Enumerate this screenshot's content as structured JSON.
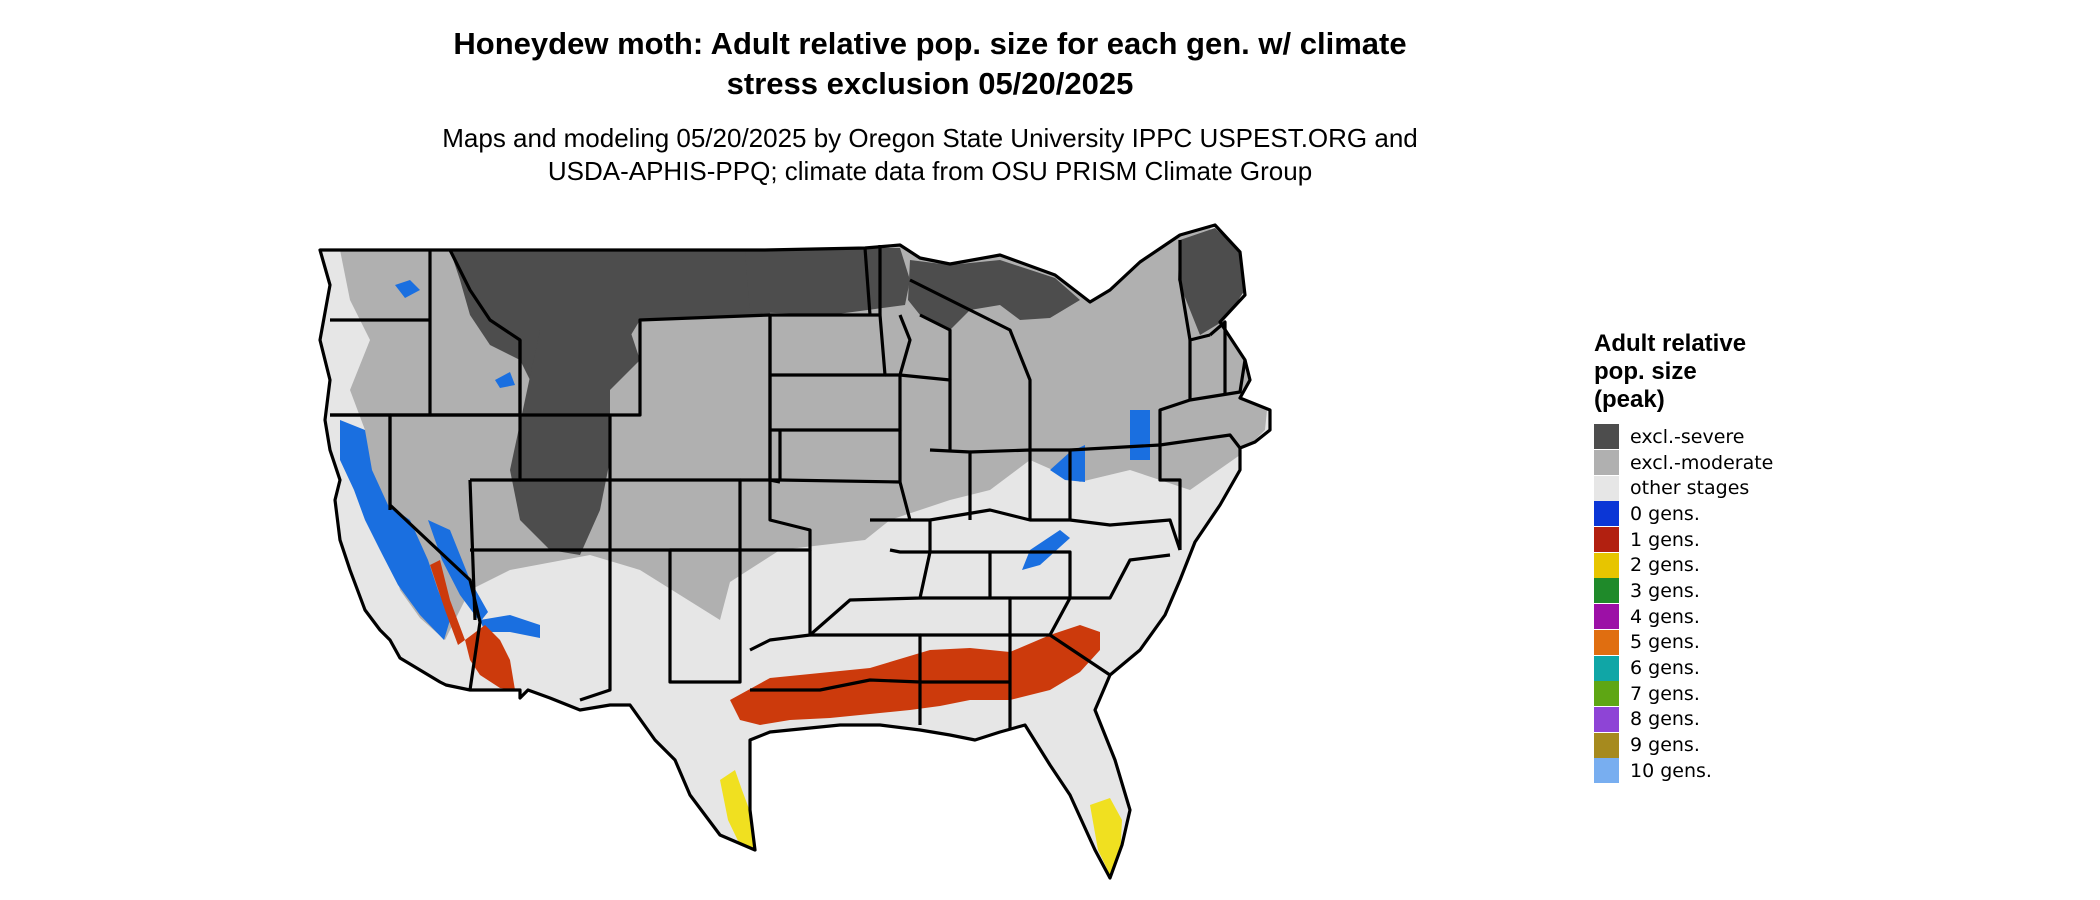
{
  "title_line1": "Honeydew moth: Adult relative pop. size for each gen. w/ climate",
  "title_line2": "stress exclusion 05/20/2025",
  "subtitle_line1": "Maps and modeling 05/20/2025 by Oregon State University IPPC USPEST.ORG and",
  "subtitle_line2": "USDA-APHIS-PPQ; climate data from OSU PRISM Climate Group",
  "legend": {
    "title_line1": "Adult relative",
    "title_line2": "pop. size",
    "title_line3": "(peak)",
    "items": [
      {
        "label": "excl.-severe",
        "color": "#4d4d4d"
      },
      {
        "label": "excl.-moderate",
        "color": "#b0b0b0"
      },
      {
        "label": "other stages",
        "color": "#e6e6e6"
      },
      {
        "label": "0 gens.",
        "color": "#0b36d6"
      },
      {
        "label": "1 gens.",
        "color": "#b22010"
      },
      {
        "label": "2 gens.",
        "color": "#e7c500"
      },
      {
        "label": "3 gens.",
        "color": "#1f8a2a"
      },
      {
        "label": "4 gens.",
        "color": "#9c10a6"
      },
      {
        "label": "5 gens.",
        "color": "#e06e10"
      },
      {
        "label": "6 gens.",
        "color": "#10a6a6"
      },
      {
        "label": "7 gens.",
        "color": "#5ea614"
      },
      {
        "label": "8 gens.",
        "color": "#8e44d6"
      },
      {
        "label": "9 gens.",
        "color": "#a68a1e"
      },
      {
        "label": "10 gens.",
        "color": "#78aef0"
      }
    ]
  },
  "map_colors": {
    "severe": "#4d4d4d",
    "moderate": "#b0b0b0",
    "other": "#e6e6e6",
    "zero_gens": "#1a6fe0",
    "one_gen": "#cc3a0c",
    "two_gens": "#f0e020",
    "border": "#000000"
  }
}
